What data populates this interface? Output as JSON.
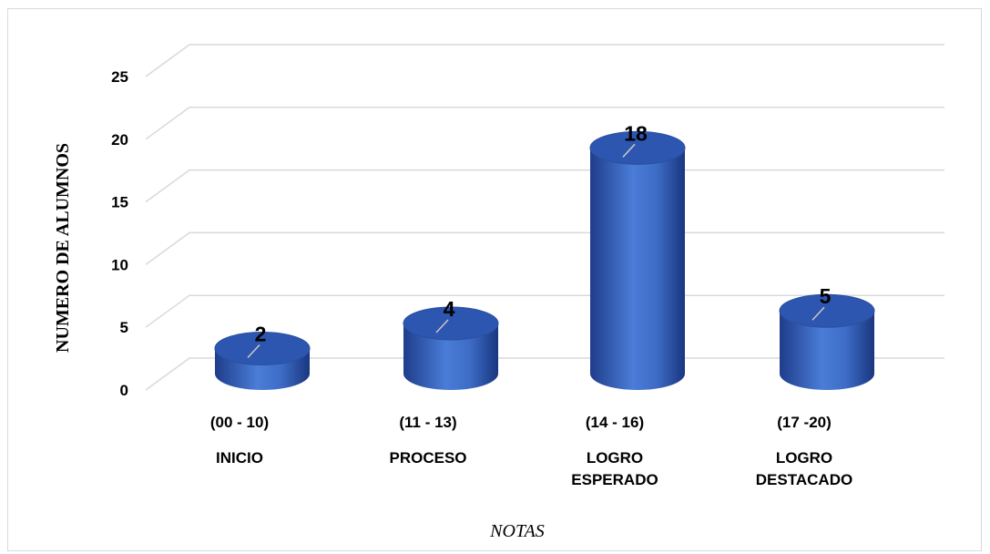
{
  "chart_data": {
    "type": "bar",
    "style": "3d-cylinder",
    "categories": [
      {
        "range": "(00 - 10)",
        "name": [
          "INICIO"
        ]
      },
      {
        "range": "(11 - 13)",
        "name": [
          "PROCESO"
        ]
      },
      {
        "range": "(14 - 16)",
        "name": [
          "LOGRO",
          "ESPERADO"
        ]
      },
      {
        "range": "(17 -20)",
        "name": [
          "LOGRO",
          "DESTACADO"
        ]
      }
    ],
    "values": [
      2,
      4,
      18,
      5
    ],
    "data_labels": [
      "2",
      "4",
      "18",
      "5"
    ],
    "xlabel": "NOTAS",
    "ylabel": "NUMERO DE ALUMNOS",
    "ylim": [
      0,
      25
    ],
    "yticks": [
      "0",
      "5",
      "10",
      "15",
      "20",
      "25"
    ],
    "grid": true,
    "legend": "none",
    "colors": {
      "bar": "#4472c4",
      "bar_dark": "#1f3d8a",
      "bar_top": "#2c56b0",
      "grid": "#d9d9d9"
    }
  }
}
